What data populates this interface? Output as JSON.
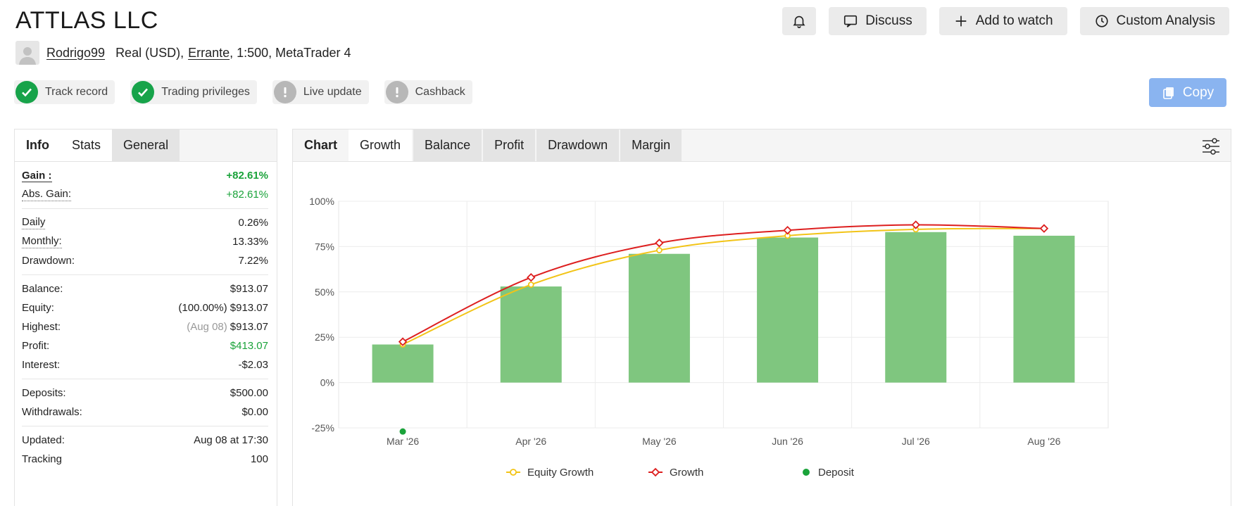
{
  "header": {
    "title": "ATTLAS LLC",
    "actions": {
      "discuss": "Discuss",
      "add_to_watch": "Add to watch",
      "custom_analysis": "Custom Analysis"
    }
  },
  "account": {
    "username": "Rodrigo99",
    "type": "Real (USD),",
    "broker": "Errante",
    "details": ", 1:500, MetaTrader 4"
  },
  "badges": [
    {
      "label": "Track record",
      "status": "ok"
    },
    {
      "label": "Trading privileges",
      "status": "ok"
    },
    {
      "label": "Live update",
      "status": "warn"
    },
    {
      "label": "Cashback",
      "status": "warn"
    }
  ],
  "copy_label": "Copy",
  "left_tabs": [
    "Info",
    "Stats",
    "General"
  ],
  "stats": {
    "gain_label": "Gain :",
    "gain": "+82.61%",
    "abs_gain_label": "Abs. Gain:",
    "abs_gain": "+82.61%",
    "daily_label": "Daily",
    "daily": "0.26%",
    "monthly_label": "Monthly:",
    "monthly": "13.33%",
    "drawdown_label": "Drawdown:",
    "drawdown": "7.22%",
    "balance_label": "Balance:",
    "balance": "$913.07",
    "equity_label": "Equity:",
    "equity": "(100.00%) $913.07",
    "highest_label": "Highest:",
    "highest_date": "(Aug 08)",
    "highest": "$913.07",
    "profit_label": "Profit:",
    "profit": "$413.07",
    "interest_label": "Interest:",
    "interest": "-$2.03",
    "deposits_label": "Deposits:",
    "deposits": "$500.00",
    "withdrawals_label": "Withdrawals:",
    "withdrawals": "$0.00",
    "updated_label": "Updated:",
    "updated": "Aug 08 at 17:30",
    "tracking_label": "Tracking",
    "tracking": "100"
  },
  "right_tabs": [
    "Chart",
    "Growth",
    "Balance",
    "Profit",
    "Drawdown",
    "Margin"
  ],
  "colors": {
    "bar": "#7fc67f",
    "equity": "#f2c417",
    "growth": "#dd1f1f",
    "deposit": "#1aa33a",
    "accent_button": "#8ab4f0",
    "badge_ok": "#17a34a"
  },
  "chart_data": {
    "type": "bar",
    "categories": [
      "Mar '26",
      "Apr '26",
      "May '26",
      "Jun '26",
      "Jul '26",
      "Aug '26"
    ],
    "y_ticks": [
      "100%",
      "75%",
      "50%",
      "25%",
      "0%",
      "-25%"
    ],
    "ylim": [
      -25,
      100
    ],
    "grid": true,
    "legend_position": "bottom",
    "bars": [
      21,
      53,
      71,
      80,
      83,
      81
    ],
    "series": [
      {
        "name": "Equity Growth",
        "values": [
          21,
          54,
          73,
          81,
          84.5,
          85
        ]
      },
      {
        "name": "Growth",
        "values": [
          22.5,
          58,
          77,
          84,
          87,
          85
        ]
      }
    ],
    "deposit": {
      "name": "Deposit",
      "points": [
        {
          "x": "Mar '26",
          "y": -27
        }
      ]
    }
  }
}
